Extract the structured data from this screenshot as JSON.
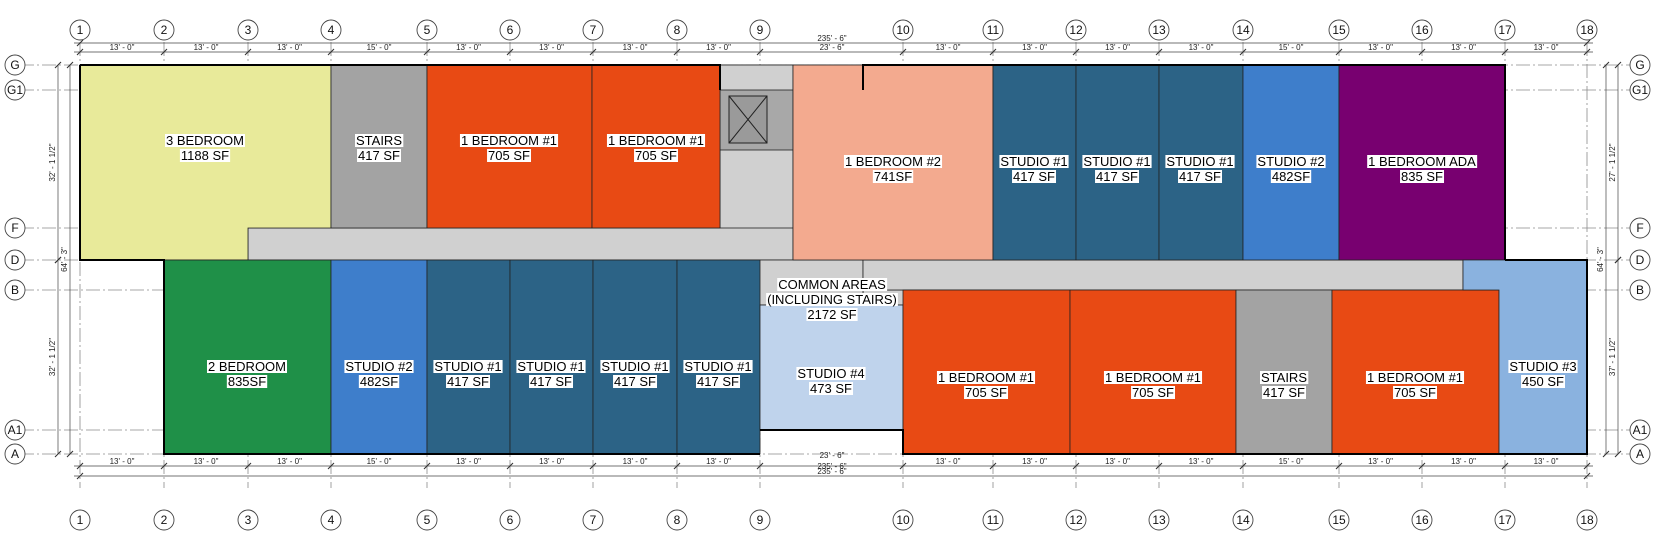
{
  "overall_dimension": "235' - 6\"",
  "half_dimension": "23' - 6\"",
  "bay_dims_top": [
    "13' - 0\"",
    "13' - 0\"",
    "13' - 0\"",
    "15' - 0\"",
    "13' - 0\"",
    "13' - 0\"",
    "13' - 0\"",
    "13' - 0\"",
    "",
    "13' - 0\"",
    "13' - 0\"",
    "13' - 0\"",
    "13' - 0\"",
    "15' - 0\"",
    "13' - 0\"",
    "13' - 0\"",
    "13' - 0\""
  ],
  "bay_dims_bottom": [
    "13' - 0\"",
    "13' - 0\"",
    "13' - 0\"",
    "15' - 0\"",
    "13' - 0\"",
    "13' - 0\"",
    "13' - 0\"",
    "13' - 0\"",
    "",
    "13' - 0\"",
    "13' - 0\"",
    "13' - 0\"",
    "13' - 0\"",
    "15' - 0\"",
    "13' - 0\"",
    "13' - 0\"",
    "13' - 0\""
  ],
  "grid_columns": [
    "1",
    "2",
    "3",
    "4",
    "5",
    "6",
    "7",
    "8",
    "9",
    "10",
    "11",
    "12",
    "13",
    "14",
    "15",
    "16",
    "17",
    "18"
  ],
  "grid_rows": [
    "G",
    "G1",
    "F",
    "D",
    "B",
    "A1",
    "A"
  ],
  "left_dims": {
    "upper": "32' - 1 1/2\"",
    "total": "64' - 3\"",
    "lower": "32' - 1 1/2\""
  },
  "right_dims": {
    "upper": "27' - 1 1/2\"",
    "total": "64' - 3\"",
    "lower": "37' - 1 1/2\""
  },
  "colors": {
    "three_bed": "#e8ea9a",
    "stairs": "#a3a3a3",
    "one_bed_1": "#e84a14",
    "one_bed_2": "#f3aa8f",
    "studio_1": "#2c6386",
    "studio_2": "#3e7ecb",
    "studio_3": "#8ab2df",
    "studio_4": "#bfd3ec",
    "one_bed_ada": "#780070",
    "two_bed": "#1f9048",
    "common": "#d0d0d0",
    "elevator": "#a8a8a8"
  },
  "rooms": [
    {
      "key": "r3bed",
      "name": "3 BEDROOM",
      "area": "1188 SF"
    },
    {
      "key": "rstairs1",
      "name": "STAIRS",
      "area": "417 SF"
    },
    {
      "key": "r1b1a",
      "name": "1 BEDROOM #1",
      "area": "705 SF"
    },
    {
      "key": "r1b1b",
      "name": "1 BEDROOM #1",
      "area": "705 SF"
    },
    {
      "key": "r1b2",
      "name": "1 BEDROOM #2",
      "area": "741SF"
    },
    {
      "key": "rs1a",
      "name": "STUDIO #1",
      "area": "417 SF"
    },
    {
      "key": "rs1b",
      "name": "STUDIO #1",
      "area": "417 SF"
    },
    {
      "key": "rs1c",
      "name": "STUDIO #1",
      "area": "417 SF"
    },
    {
      "key": "rs2a",
      "name": "STUDIO #2",
      "area": "482SF"
    },
    {
      "key": "rada",
      "name": "1 BEDROOM ADA",
      "area": "835 SF"
    },
    {
      "key": "r2bed",
      "name": "2 BEDROOM",
      "area": "835SF"
    },
    {
      "key": "rs2b",
      "name": "STUDIO #2",
      "area": "482SF"
    },
    {
      "key": "rs1d",
      "name": "STUDIO #1",
      "area": "417 SF"
    },
    {
      "key": "rs1e",
      "name": "STUDIO #1",
      "area": "417 SF"
    },
    {
      "key": "rs1f",
      "name": "STUDIO #1",
      "area": "417 SF"
    },
    {
      "key": "rs1g",
      "name": "STUDIO #1",
      "area": "417 SF"
    },
    {
      "key": "rs4",
      "name": "STUDIO #4",
      "area": "473 SF"
    },
    {
      "key": "r1b1c",
      "name": "1 BEDROOM #1",
      "area": "705 SF"
    },
    {
      "key": "r1b1d",
      "name": "1 BEDROOM #1",
      "area": "705 SF"
    },
    {
      "key": "rstairs2",
      "name": "STAIRS",
      "area": "417 SF"
    },
    {
      "key": "r1b1e",
      "name": "1 BEDROOM #1",
      "area": "705 SF"
    },
    {
      "key": "rs3",
      "name": "STUDIO #3",
      "area": "450 SF"
    }
  ],
  "common_area": {
    "line1": "COMMON AREAS",
    "line2": "(INCLUDING STAIRS)",
    "area": "2172 SF"
  }
}
